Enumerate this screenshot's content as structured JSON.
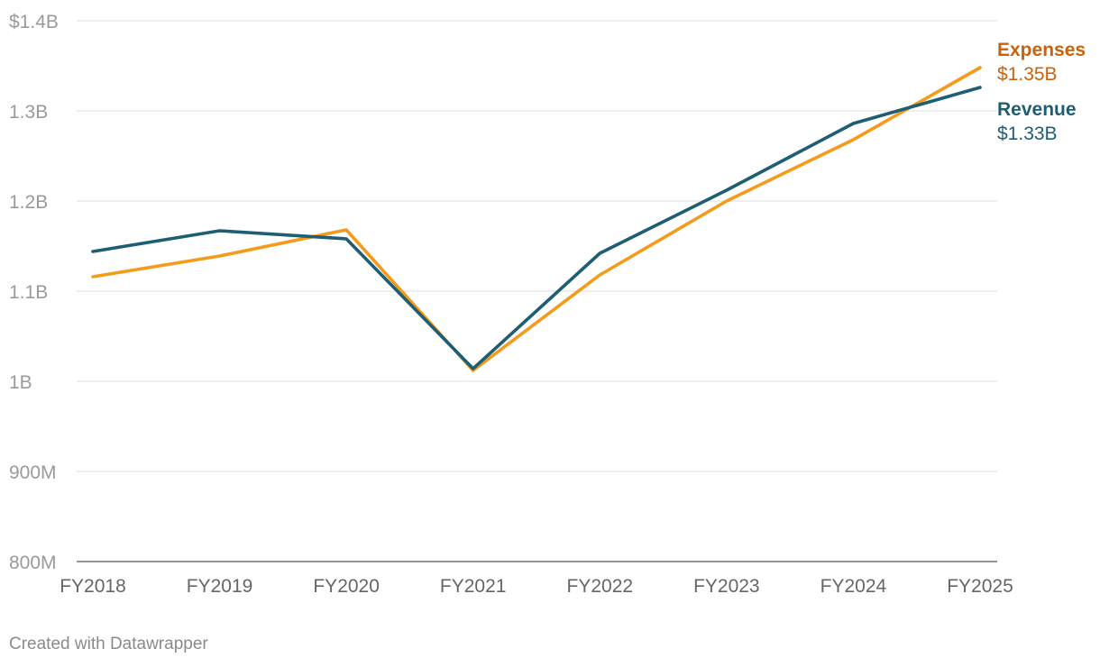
{
  "credit": "Created with Datawrapper",
  "chart_data": {
    "type": "line",
    "title": "",
    "xlabel": "",
    "ylabel": "",
    "categories": [
      "FY2018",
      "FY2019",
      "FY2020",
      "FY2021",
      "FY2022",
      "FY2023",
      "FY2024",
      "FY2025"
    ],
    "ylim": [
      800000000,
      1400000000
    ],
    "yticks": [
      {
        "value": 1400000000,
        "label": "$1.4B"
      },
      {
        "value": 1300000000,
        "label": "1.3B"
      },
      {
        "value": 1200000000,
        "label": "1.2B"
      },
      {
        "value": 1100000000,
        "label": "1.1B"
      },
      {
        "value": 1000000000,
        "label": "1B"
      },
      {
        "value": 900000000,
        "label": "900M"
      },
      {
        "value": 800000000,
        "label": "800M"
      }
    ],
    "grid": true,
    "legend": "direct labels at line ends (right)",
    "series": [
      {
        "name": "Revenue",
        "end_label": "$1.33B",
        "color": "#1d5e73",
        "label_color": "#1d5e73",
        "values": [
          1144000000,
          1167000000,
          1158000000,
          1014000000,
          1142000000,
          1212000000,
          1286000000,
          1326000000
        ]
      },
      {
        "name": "Expenses",
        "end_label": "$1.35B",
        "color": "#f49b1c",
        "label_color": "#c9620a",
        "values": [
          1116000000,
          1139000000,
          1168000000,
          1012000000,
          1118000000,
          1200000000,
          1268000000,
          1348000000
        ]
      }
    ]
  }
}
